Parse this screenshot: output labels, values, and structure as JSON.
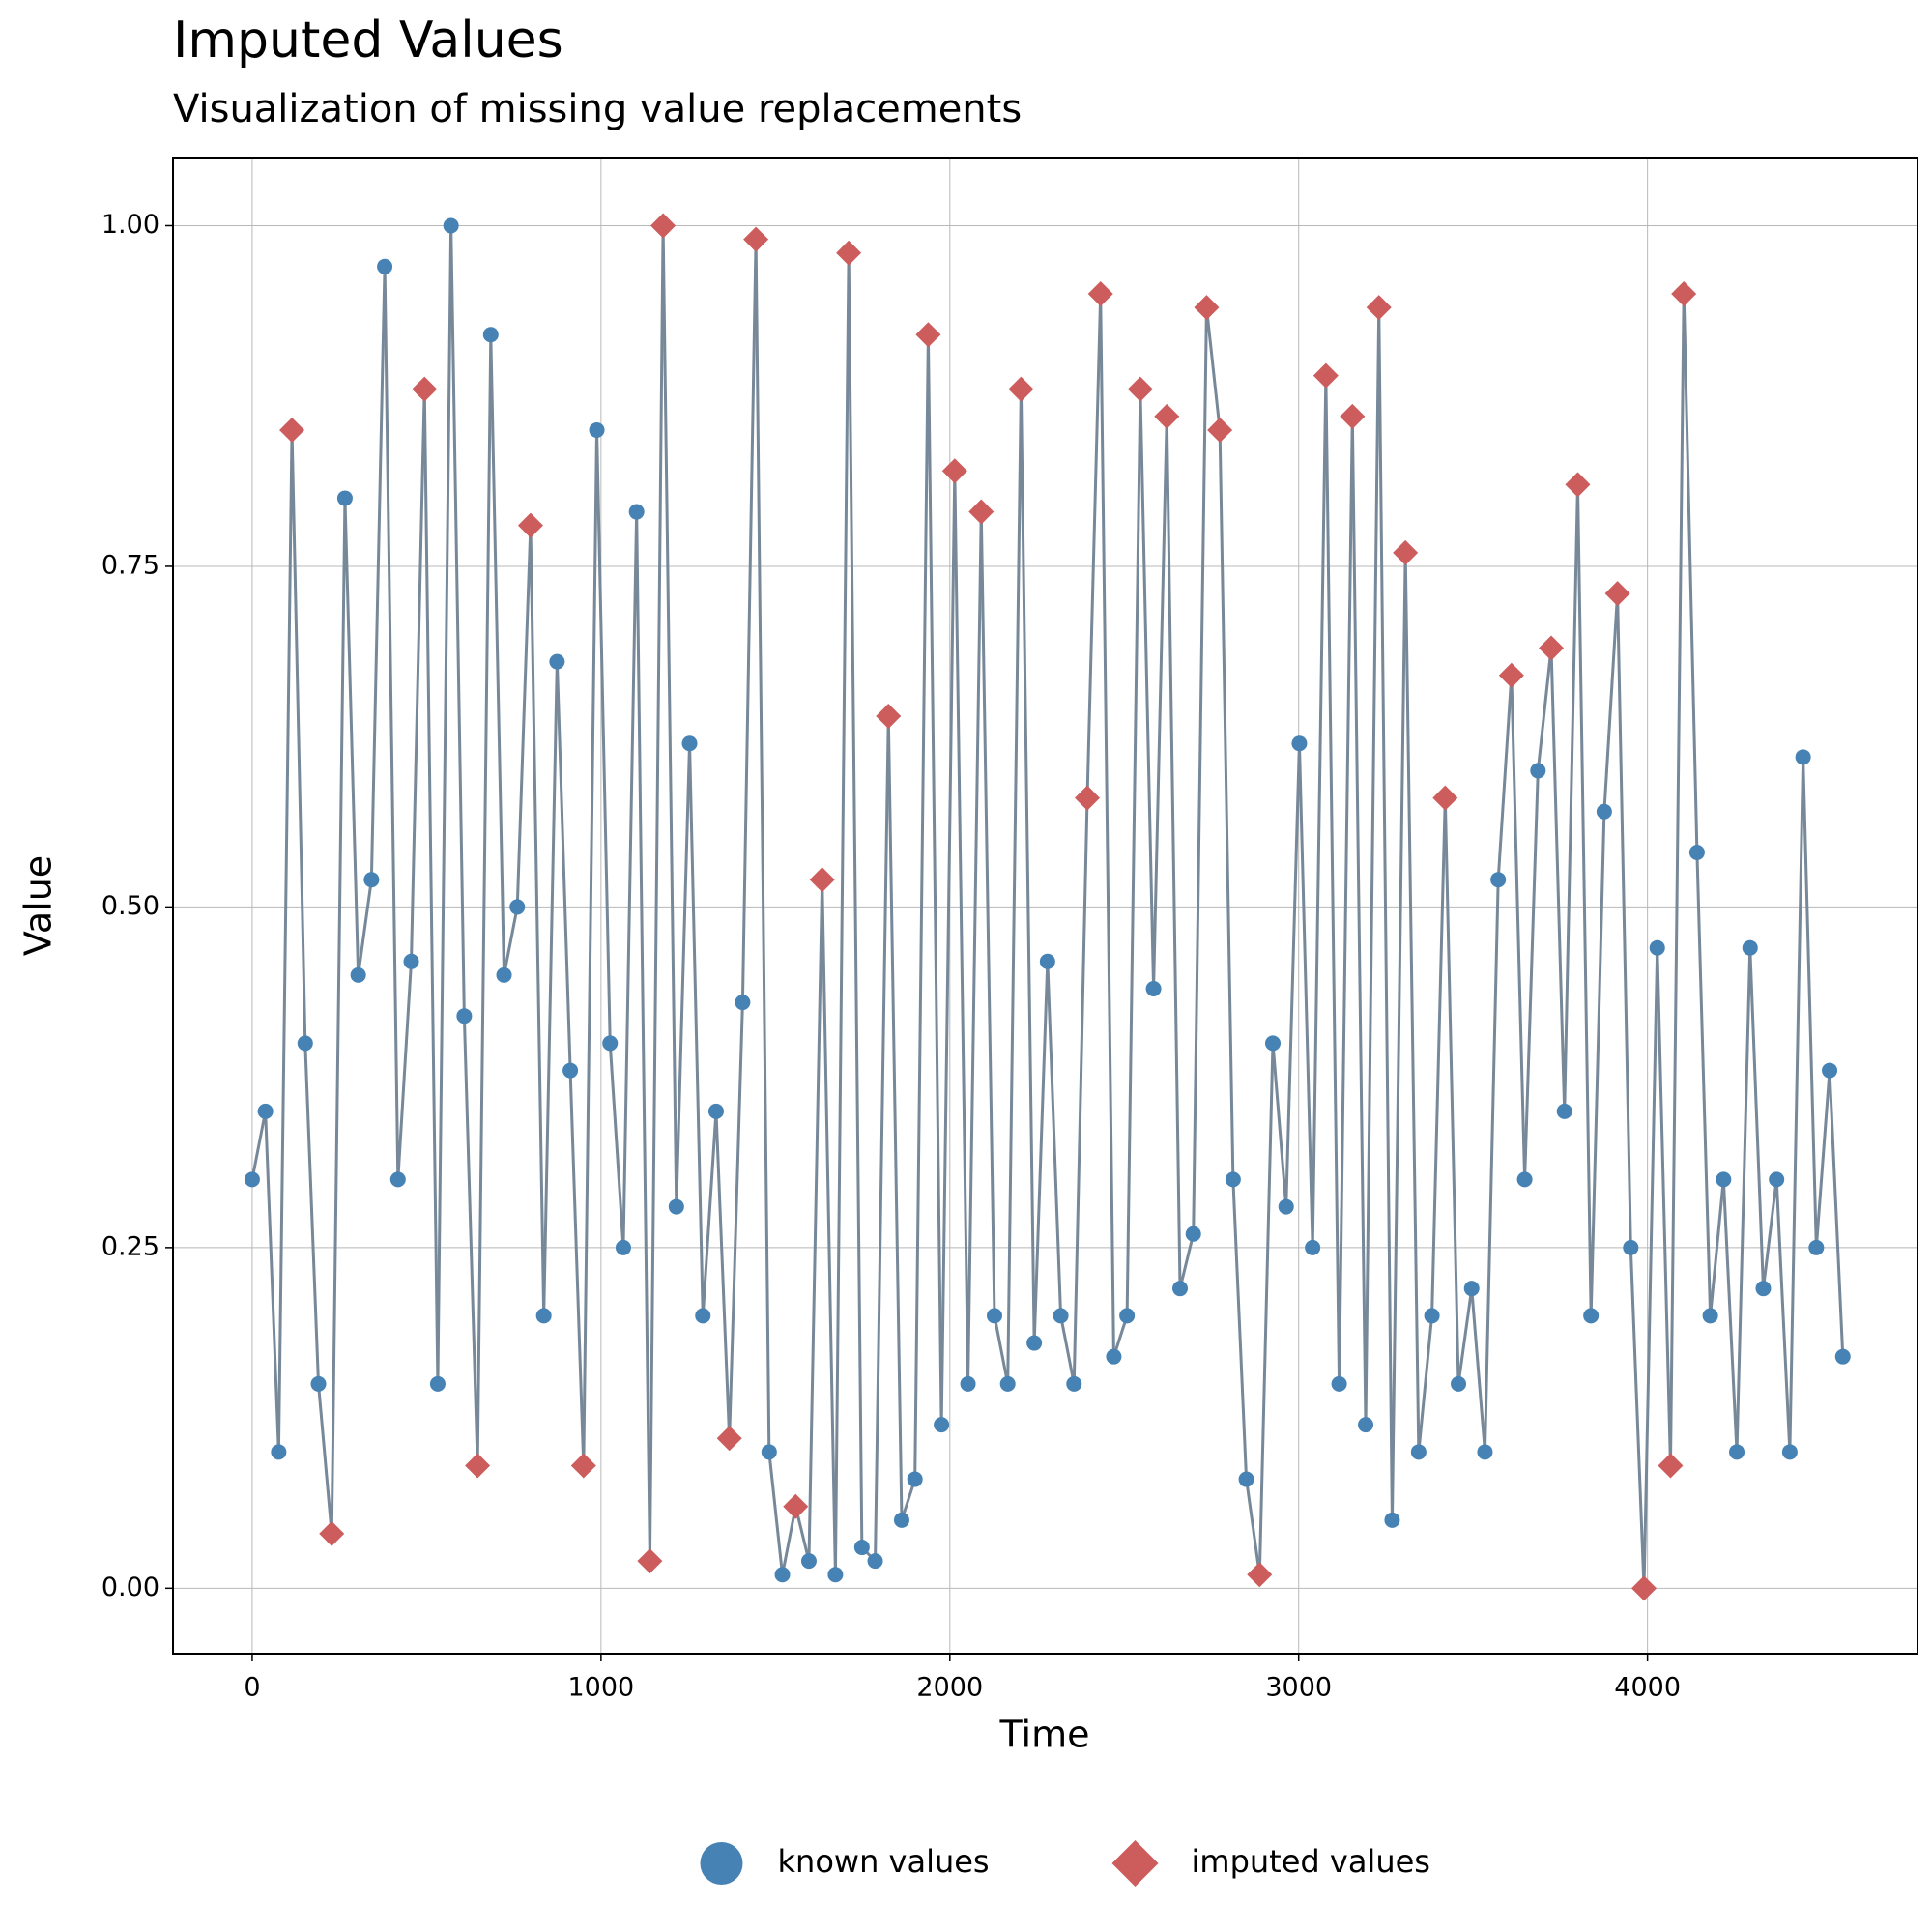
{
  "chart_data": {
    "type": "scatter-line",
    "title": "Imputed Values",
    "subtitle": "Visualization of missing value replacements",
    "xlabel": "Time",
    "ylabel": "Value",
    "xlim": [
      -227,
      4774
    ],
    "ylim": [
      -0.048,
      1.05
    ],
    "xticks": [
      0,
      1000,
      2000,
      3000,
      4000
    ],
    "yticks": [
      {
        "value": 0,
        "label": "0.00"
      },
      {
        "value": 0.25,
        "label": "0.25"
      },
      {
        "value": 0.5,
        "label": "0.50"
      },
      {
        "value": 0.75,
        "label": "0.75"
      },
      {
        "value": 1,
        "label": "1.00"
      }
    ],
    "grid": true,
    "legend": "bottom",
    "line_color": "#778899",
    "x": [
      0,
      38,
      76,
      114,
      152,
      190,
      228,
      266,
      304,
      342,
      380,
      418,
      456,
      494,
      532,
      570,
      608,
      646,
      684,
      722,
      760,
      798,
      836,
      874,
      912,
      950,
      988,
      1026,
      1064,
      1102,
      1140,
      1178,
      1216,
      1254,
      1292,
      1330,
      1368,
      1406,
      1444,
      1482,
      1520,
      1558,
      1596,
      1634,
      1672,
      1710,
      1748,
      1786,
      1824,
      1862,
      1900,
      1938,
      1976,
      2014,
      2052,
      2090,
      2128,
      2166,
      2204,
      2242,
      2280,
      2318,
      2356,
      2394,
      2432,
      2470,
      2508,
      2546,
      2584,
      2622,
      2660,
      2698,
      2736,
      2774,
      2812,
      2850,
      2888,
      2926,
      2964,
      3002,
      3040,
      3078,
      3116,
      3154,
      3192,
      3230,
      3268,
      3306,
      3344,
      3382,
      3420,
      3458,
      3496,
      3534,
      3572,
      3610,
      3648,
      3686,
      3724,
      3762,
      3800,
      3838,
      3876,
      3914,
      3952,
      3990,
      4028,
      4066,
      4104,
      4142,
      4180,
      4218,
      4256,
      4294,
      4332,
      4370,
      4408,
      4446,
      4484,
      4522,
      4560
    ],
    "series": [
      {
        "name": "known values",
        "color": "#4682b4",
        "marker": "circle",
        "values": [
          0.3,
          0.35,
          0.1,
          null,
          0.4,
          0.15,
          null,
          0.8,
          0.45,
          0.52,
          0.97,
          0.3,
          0.46,
          null,
          0.15,
          1.0,
          0.42,
          null,
          0.92,
          0.45,
          0.5,
          null,
          0.2,
          0.68,
          0.38,
          null,
          0.85,
          0.4,
          0.25,
          0.79,
          null,
          null,
          0.28,
          0.62,
          0.2,
          0.35,
          null,
          0.43,
          null,
          0.1,
          0.01,
          null,
          0.02,
          null,
          0.01,
          null,
          0.03,
          0.02,
          null,
          0.05,
          0.08,
          null,
          0.12,
          null,
          0.15,
          null,
          0.2,
          0.15,
          null,
          0.18,
          0.46,
          0.2,
          0.15,
          null,
          null,
          0.17,
          0.2,
          null,
          0.44,
          null,
          0.22,
          0.26,
          null,
          null,
          0.3,
          0.08,
          null,
          0.4,
          0.28,
          0.62,
          0.25,
          null,
          0.15,
          null,
          0.12,
          null,
          0.05,
          null,
          0.1,
          0.2,
          null,
          0.15,
          0.22,
          0.1,
          0.52,
          null,
          0.3,
          0.6,
          null,
          0.35,
          null,
          0.2,
          0.57,
          null,
          0.25,
          null,
          0.47,
          null,
          null,
          0.54,
          0.2,
          0.3,
          0.1,
          0.47,
          0.22,
          0.3,
          0.1,
          0.61,
          0.25,
          0.38,
          0.17
        ]
      },
      {
        "name": "imputed values",
        "color": "#cd5c5c",
        "marker": "diamond",
        "values": [
          null,
          null,
          null,
          0.85,
          null,
          null,
          0.04,
          null,
          null,
          null,
          null,
          null,
          null,
          0.88,
          null,
          null,
          null,
          0.09,
          null,
          null,
          null,
          0.78,
          null,
          null,
          null,
          0.09,
          null,
          null,
          null,
          null,
          0.02,
          1.0,
          null,
          null,
          null,
          null,
          0.11,
          null,
          0.99,
          null,
          null,
          0.06,
          null,
          0.52,
          null,
          0.98,
          null,
          null,
          0.64,
          null,
          null,
          0.92,
          null,
          0.82,
          null,
          0.79,
          null,
          null,
          0.88,
          null,
          null,
          null,
          null,
          0.58,
          0.95,
          null,
          null,
          0.88,
          null,
          0.86,
          null,
          null,
          0.94,
          0.85,
          null,
          null,
          0.01,
          null,
          null,
          null,
          null,
          0.89,
          null,
          0.86,
          null,
          0.94,
          null,
          0.76,
          null,
          null,
          0.58,
          null,
          null,
          null,
          null,
          0.67,
          null,
          null,
          0.69,
          null,
          0.81,
          null,
          null,
          0.73,
          null,
          0.0,
          null,
          0.09,
          0.95,
          null,
          null,
          null,
          null,
          null,
          null,
          null,
          null,
          null,
          null,
          null,
          null
        ]
      }
    ]
  }
}
